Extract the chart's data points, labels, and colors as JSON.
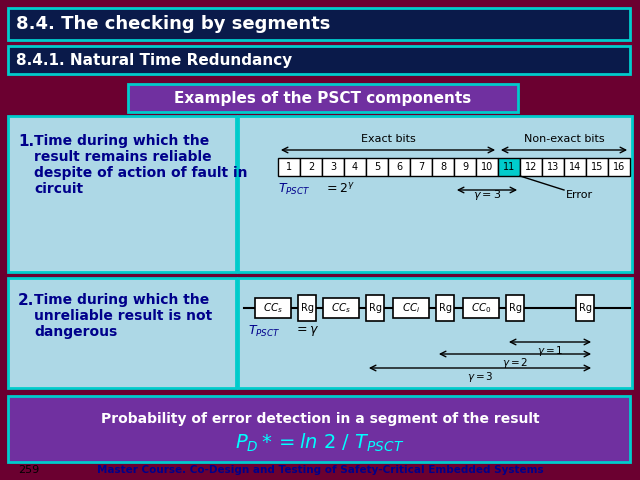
{
  "bg_color": "#6b0030",
  "title1": "8.4. The checking by segments",
  "title2": "8.4.1. Natural Time Redundancy",
  "banner": "Examples of the PSCT components",
  "footer_line1": "Probability of error detection in a segment of the result",
  "slide_num": "259",
  "footer_course": "Master Course. Co-Design and Testing of Safety-Critical Embedded Systems",
  "title_bg": "#0a1a4a",
  "title_border": "#00cccc",
  "banner_bg": "#7030a0",
  "banner_border": "#00cccc",
  "item_bg": "#add8e6",
  "item_border": "#00aaff",
  "diagram_bg": "#add8e6",
  "footer_bg": "#7030a0",
  "footer_border": "#00cccc",
  "cyan_cell": "#00cccc",
  "text_dark_blue": "#00008b",
  "white": "#ffffff",
  "black": "#000000",
  "cyan": "#00ffff"
}
